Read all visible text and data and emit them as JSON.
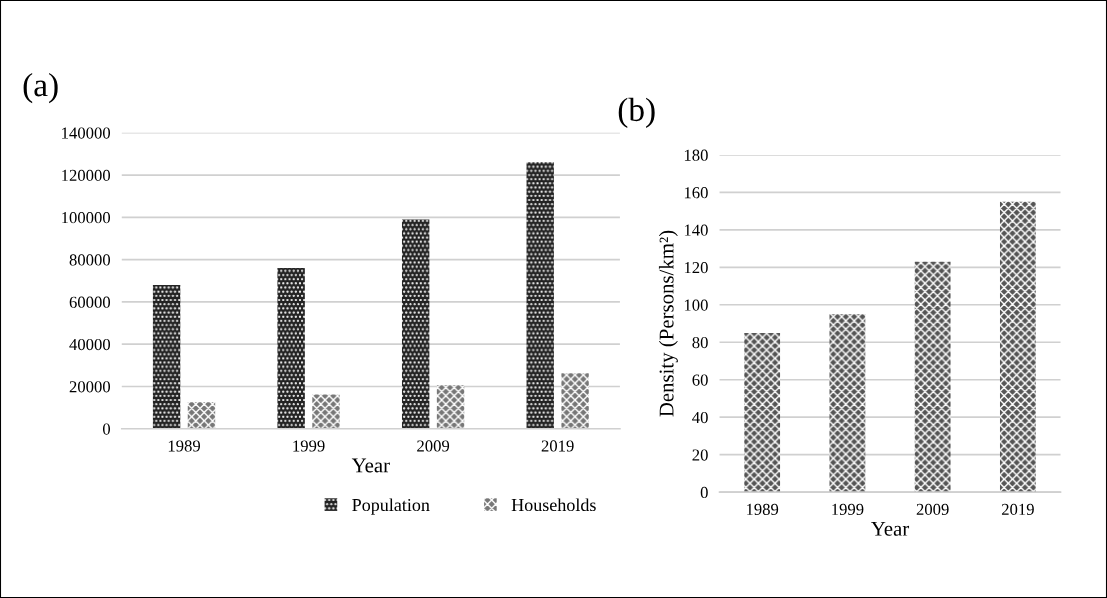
{
  "chart_data": [
    {
      "type": "bar",
      "title": "(a)",
      "xlabel": "Year",
      "categories": [
        "1989",
        "1999",
        "2009",
        "2019"
      ],
      "series": [
        {
          "name": "Population",
          "color": "#222222",
          "values": [
            68000,
            76000,
            99000,
            126000
          ]
        },
        {
          "name": "Households",
          "color": "#777777",
          "values": [
            12500,
            16200,
            20600,
            26200
          ]
        }
      ],
      "ylim": [
        0,
        140000
      ],
      "yticks": [
        0,
        20000,
        40000,
        60000,
        80000,
        100000,
        120000,
        140000
      ],
      "grid": "y",
      "legend": "bottom"
    },
    {
      "type": "bar",
      "title": "(b)",
      "xlabel": "Year",
      "ylabel": "Density (Persons/km²)",
      "categories": [
        "1989",
        "1999",
        "2009",
        "2019"
      ],
      "series": [
        {
          "color": "#555555",
          "values": [
            85,
            95,
            123,
            155
          ]
        }
      ],
      "ylim": [
        0,
        180
      ],
      "yticks": [
        0,
        20,
        40,
        60,
        80,
        100,
        120,
        140,
        160,
        180
      ],
      "grid": "y"
    }
  ]
}
